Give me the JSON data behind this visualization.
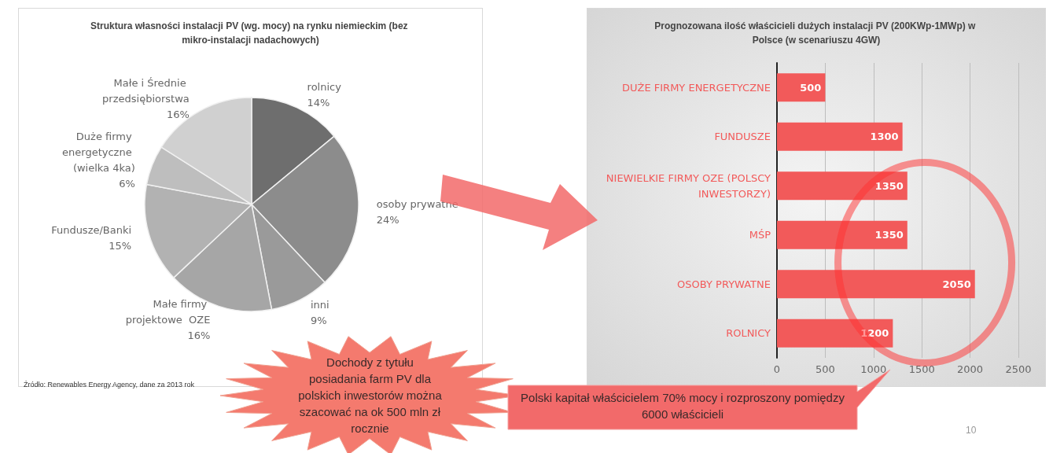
{
  "chart_data": [
    {
      "type": "pie",
      "title": "Struktura własności instalacji PV (wg. mocy) na rynku niemieckim (bez mikro-instalacji nadachowych)",
      "categories": [
        "rolnicy",
        "osoby prywatne",
        "inni",
        "Małe firmy projektowe  OZE",
        "Fundusze/Banki",
        "Duże firmy energetyczne (wielka 4ka)",
        "Małe i Średnie przedsiębiorstwa"
      ],
      "values": [
        14,
        24,
        9,
        16,
        15,
        6,
        16
      ],
      "value_labels": [
        "14%",
        "24%",
        "9%",
        "16%",
        "15%",
        "6%",
        "16%"
      ],
      "colors": [
        "#6e6e6e",
        "#8c8c8c",
        "#9a9a9a",
        "#a6a6a6",
        "#b2b2b2",
        "#bebebe",
        "#d0d0d0"
      ],
      "annotations": [
        "Źródło: Renewables Energy Agency, dane za 2013 rok",
        "Dochody z tytułu posiadania farm PV dla polskich inwestorów można szacować na ok 500 mln zł rocznie"
      ]
    },
    {
      "type": "bar",
      "orientation": "horizontal",
      "title": "Prognozowana ilość właścicieli dużych instalacji PV (200KWp-1MWp) w Polsce (w scenariuszu 4GW)",
      "categories": [
        "DUŻE FIRMY ENERGETYCZNE",
        "FUNDUSZE",
        "NIEWIELKIE FIRMY OZE (POLSCY INWESTORZY)",
        "MŚP",
        "OSOBY PRYWATNE",
        "ROLNICY"
      ],
      "values": [
        500,
        1300,
        1350,
        1350,
        2050,
        1200
      ],
      "color": "#f25a5a",
      "data_labels": true,
      "grid": "x",
      "xlim": [
        0,
        2500
      ],
      "xticks": [
        0,
        500,
        1000,
        1500,
        2000,
        2500
      ],
      "annotations": [
        "Polski kapitał właścicielem 70% mocy i rozproszony pomiędzy 6000 właścicieli",
        "10"
      ]
    }
  ]
}
